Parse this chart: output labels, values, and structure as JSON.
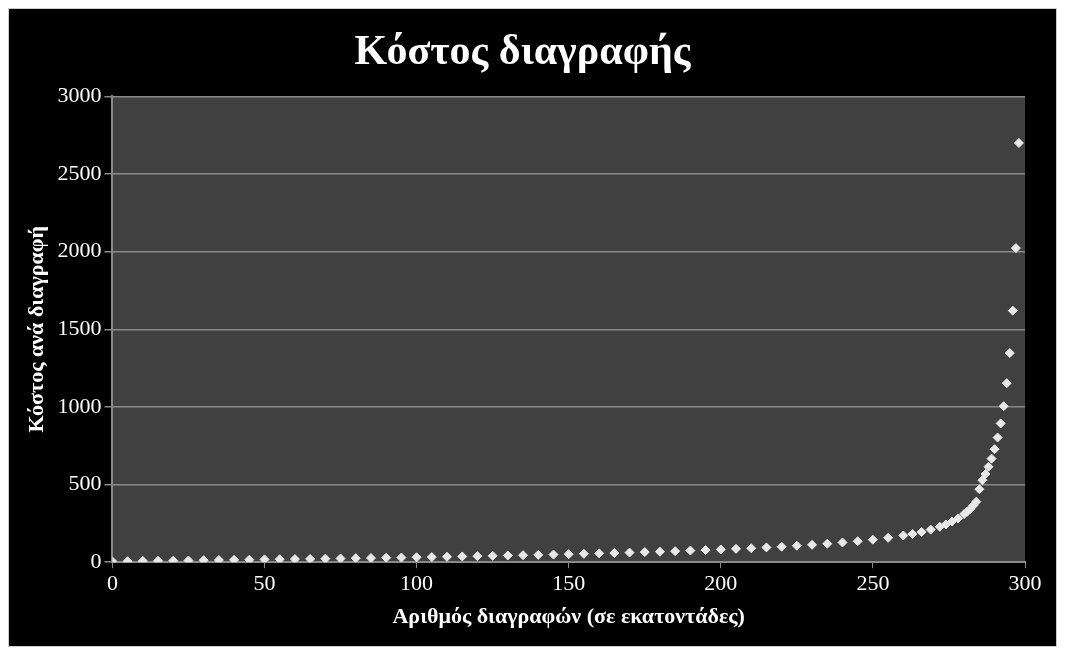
{
  "chart_data": {
    "type": "scatter",
    "title": "Κόστος διαγραφής",
    "xlabel": "Αριθμός διαγραφών (σε εκατοντάδες)",
    "ylabel": "Κόστος ανά διαγραφή",
    "series": [
      {
        "color": "#e8e8e8",
        "x": [
          0,
          5,
          10,
          15,
          20,
          25,
          30,
          35,
          40,
          45,
          50,
          55,
          60,
          65,
          70,
          75,
          80,
          85,
          90,
          95,
          100,
          105,
          110,
          115,
          120,
          125,
          130,
          135,
          140,
          145,
          150,
          155,
          160,
          165,
          170,
          175,
          180,
          185,
          190,
          195,
          200,
          205,
          210,
          215,
          220,
          225,
          230,
          235,
          240,
          245,
          250,
          255,
          260,
          263,
          266,
          269,
          272,
          274,
          276,
          278,
          280,
          281,
          282,
          283,
          284,
          285,
          286,
          287,
          288,
          289,
          290,
          291,
          292,
          293,
          294,
          295,
          296,
          297,
          298
        ],
        "values": [
          5,
          6,
          8,
          9,
          10,
          11,
          13,
          14,
          15,
          16,
          18,
          19,
          20,
          21,
          23,
          24,
          26,
          27,
          29,
          30,
          32,
          33,
          35,
          37,
          39,
          41,
          43,
          45,
          47,
          49,
          52,
          54,
          57,
          59,
          62,
          65,
          68,
          71,
          75,
          78,
          82,
          86,
          90,
          95,
          100,
          106,
          112,
          119,
          127,
          135,
          145,
          157,
          172,
          182,
          195,
          210,
          228,
          243,
          262,
          282,
          310,
          325,
          343,
          365,
          390,
          470,
          528,
          568,
          615,
          667,
          728,
          803,
          894,
          1005,
          1153,
          1347,
          1620,
          2023,
          2700
        ]
      }
    ],
    "xlim": [
      0,
      300
    ],
    "xticks": [
      0,
      50,
      100,
      150,
      200,
      250,
      300
    ],
    "ylim": [
      0,
      3000
    ],
    "yticks": [
      0,
      500,
      1000,
      1500,
      2000,
      2500,
      3000
    ],
    "grid": "y",
    "marker": "diamond",
    "legend": false
  }
}
